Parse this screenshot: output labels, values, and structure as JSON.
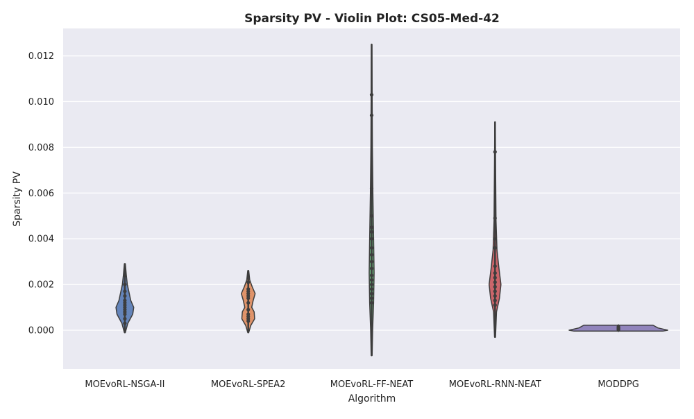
{
  "chart_data": {
    "type": "violin",
    "title": "Sparsity PV - Violin Plot: CS05-Med-42",
    "xlabel": "Algorithm",
    "ylabel": "Sparsity PV",
    "ylim": [
      -0.0017,
      0.0132
    ],
    "yticks": [
      "0.000",
      "0.002",
      "0.004",
      "0.006",
      "0.008",
      "0.010",
      "0.012"
    ],
    "ytick_values": [
      0,
      0.002,
      0.004,
      0.006,
      0.008,
      0.01,
      0.012
    ],
    "grid": true,
    "background_color": "#eaeaf2",
    "categories": [
      "MOEvoRL-NSGA-II",
      "MOEvoRL-SPEA2",
      "MOEvoRL-FF-NEAT",
      "MOEvoRL-RNN-NEAT",
      "MODDPG"
    ],
    "series": [
      {
        "category": "MOEvoRL-NSGA-II",
        "color": "#4c72b0",
        "range": [
          -0.0001,
          0.0029
        ],
        "density": [
          [
            -0.0001,
            0.01
          ],
          [
            0.0003,
            0.06
          ],
          [
            0.0007,
            0.16
          ],
          [
            0.001,
            0.18
          ],
          [
            0.0013,
            0.12
          ],
          [
            0.0017,
            0.08
          ],
          [
            0.002,
            0.05
          ],
          [
            0.0024,
            0.03
          ],
          [
            0.0029,
            0.01
          ]
        ],
        "points": [
          0.0003,
          0.0005,
          0.0007,
          0.0008,
          0.0009,
          0.001,
          0.0011,
          0.0012,
          0.0013,
          0.0015,
          0.0017,
          0.002,
          0.0024
        ]
      },
      {
        "category": "MOEvoRL-SPEA2",
        "color": "#dd8452",
        "range": [
          -0.0001,
          0.0026
        ],
        "density": [
          [
            -0.0001,
            0.01
          ],
          [
            0.0002,
            0.05
          ],
          [
            0.0005,
            0.13
          ],
          [
            0.0008,
            0.12
          ],
          [
            0.001,
            0.07
          ],
          [
            0.0013,
            0.1
          ],
          [
            0.0016,
            0.14
          ],
          [
            0.0019,
            0.08
          ],
          [
            0.0022,
            0.03
          ],
          [
            0.0026,
            0.01
          ]
        ],
        "points": [
          0.0004,
          0.0005,
          0.0006,
          0.0007,
          0.0009,
          0.0012,
          0.0014,
          0.0015,
          0.0016,
          0.0017,
          0.0018,
          0.0021
        ]
      },
      {
        "category": "MOEvoRL-FF-NEAT",
        "color": "#55a868",
        "range": [
          -0.0011,
          0.0125
        ],
        "density": [
          [
            -0.0011,
            0.01
          ],
          [
            0.0,
            0.02
          ],
          [
            0.0012,
            0.04
          ],
          [
            0.0025,
            0.05
          ],
          [
            0.004,
            0.04
          ],
          [
            0.006,
            0.025
          ],
          [
            0.008,
            0.015
          ],
          [
            0.0103,
            0.01
          ],
          [
            0.0125,
            0.005
          ]
        ],
        "points": [
          0.0012,
          0.0014,
          0.0016,
          0.0018,
          0.002,
          0.0022,
          0.0024,
          0.0027,
          0.003,
          0.0033,
          0.0036,
          0.004,
          0.0043,
          0.0045,
          0.005,
          0.0062,
          0.0094,
          0.0103
        ]
      },
      {
        "category": "MOEvoRL-RNN-NEAT",
        "color": "#c44e52",
        "range": [
          -0.0003,
          0.0091
        ],
        "density": [
          [
            -0.0003,
            0.01
          ],
          [
            0.0008,
            0.03
          ],
          [
            0.0014,
            0.09
          ],
          [
            0.002,
            0.12
          ],
          [
            0.0027,
            0.08
          ],
          [
            0.0035,
            0.04
          ],
          [
            0.0048,
            0.02
          ],
          [
            0.007,
            0.012
          ],
          [
            0.0091,
            0.005
          ]
        ],
        "points": [
          0.0011,
          0.0013,
          0.0015,
          0.0017,
          0.0019,
          0.0021,
          0.0023,
          0.0025,
          0.0028,
          0.0036,
          0.004,
          0.0049,
          0.0078
        ]
      },
      {
        "category": "MODDPG",
        "color": "#8172b3",
        "range": [
          -4e-05,
          0.00022
        ],
        "density": [
          [
            -4e-05,
            0.9
          ],
          [
            0.0,
            1.0
          ],
          [
            0.0001,
            0.8
          ],
          [
            0.00022,
            0.7
          ]
        ],
        "points": [
          2e-05,
          4e-05,
          6e-05,
          8e-05,
          0.0001,
          0.00012,
          0.00015
        ]
      }
    ]
  }
}
